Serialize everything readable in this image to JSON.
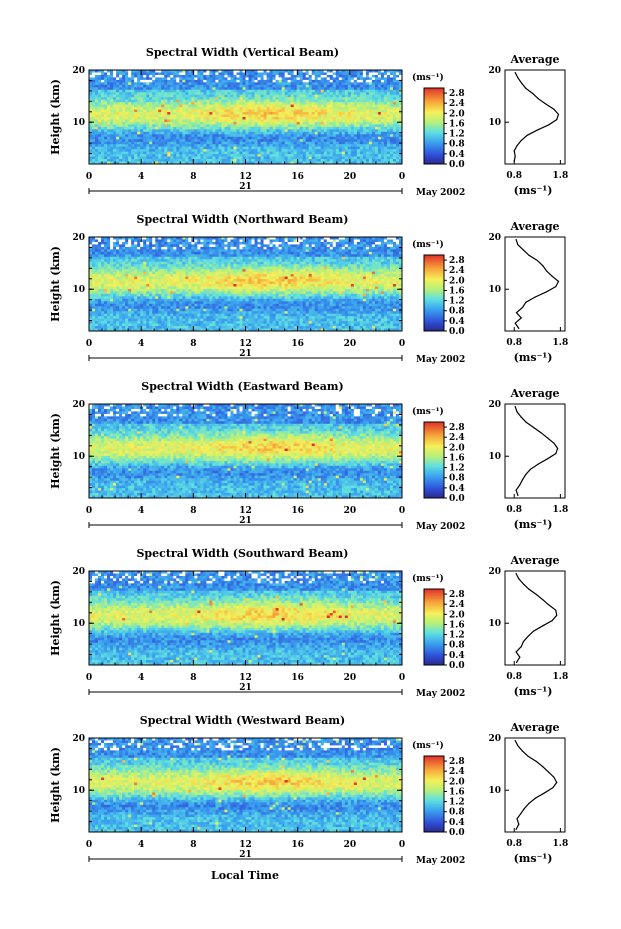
{
  "figure": {
    "xlabel": "Local Time",
    "date_tag": "May 2002",
    "day_label": "21",
    "unit_label": "(ms⁻¹)",
    "profile_title": "Average",
    "profile_xlabel": "(ms⁻¹)",
    "ylabel": "Height (km)"
  },
  "chart_data": [
    {
      "type": "heatmap",
      "title": "Spectral Width (Vertical Beam)",
      "ylabel": "Height (km)",
      "xlabel": "",
      "x_ticks": [
        "0",
        "4",
        "8",
        "12",
        "16",
        "20",
        "0"
      ],
      "x_range": [
        0,
        24
      ],
      "y_ticks": [
        "20",
        "10"
      ],
      "y_range": [
        2,
        20
      ],
      "colorbar": {
        "label": "(ms⁻¹)",
        "ticks": [
          "2.8",
          "2.4",
          "2.0",
          "1.6",
          "1.2",
          "0.8",
          "0.4",
          "0.0"
        ],
        "range": [
          0.0,
          3.0
        ]
      },
      "profile": {
        "title": "Average",
        "xlabel": "(ms⁻¹)",
        "x_ticks": [
          "0.8",
          "1.8"
        ],
        "y_ticks": [
          "20",
          "10"
        ],
        "points": [
          [
            0.8,
            2.5
          ],
          [
            0.82,
            3.5
          ],
          [
            0.8,
            4.5
          ],
          [
            0.86,
            5.5
          ],
          [
            0.95,
            6.5
          ],
          [
            1.08,
            7.5
          ],
          [
            1.3,
            8.5
          ],
          [
            1.55,
            9.5
          ],
          [
            1.72,
            10.5
          ],
          [
            1.76,
            11.5
          ],
          [
            1.66,
            12.5
          ],
          [
            1.48,
            13.5
          ],
          [
            1.32,
            14.5
          ],
          [
            1.2,
            15.5
          ],
          [
            1.05,
            16.5
          ],
          [
            0.96,
            17.5
          ],
          [
            0.88,
            18.5
          ],
          [
            0.82,
            19.5
          ]
        ]
      }
    },
    {
      "type": "heatmap",
      "title": "Spectral Width (Northward Beam)",
      "ylabel": "Height (km)",
      "xlabel": "",
      "x_ticks": [
        "0",
        "4",
        "8",
        "12",
        "16",
        "20",
        "0"
      ],
      "x_range": [
        0,
        24
      ],
      "y_ticks": [
        "20",
        "10"
      ],
      "y_range": [
        2,
        20
      ],
      "colorbar": {
        "label": "(ms⁻¹)",
        "ticks": [
          "2.8",
          "2.4",
          "2.0",
          "1.6",
          "1.2",
          "0.8",
          "0.4",
          "0.0"
        ],
        "range": [
          0.0,
          3.0
        ]
      },
      "profile": {
        "title": "Average",
        "xlabel": "(ms⁻¹)",
        "x_ticks": [
          "0.8",
          "1.8"
        ],
        "y_ticks": [
          "20",
          "10"
        ],
        "points": [
          [
            0.9,
            2.5
          ],
          [
            0.82,
            3.5
          ],
          [
            0.95,
            4.5
          ],
          [
            0.85,
            5.5
          ],
          [
            0.98,
            6.5
          ],
          [
            1.05,
            7.5
          ],
          [
            1.25,
            8.5
          ],
          [
            1.5,
            9.5
          ],
          [
            1.7,
            10.5
          ],
          [
            1.76,
            11.5
          ],
          [
            1.62,
            12.5
          ],
          [
            1.5,
            13.5
          ],
          [
            1.42,
            14.5
          ],
          [
            1.3,
            15.5
          ],
          [
            1.12,
            16.5
          ],
          [
            1.0,
            17.5
          ],
          [
            0.88,
            18.5
          ],
          [
            0.84,
            19.5
          ]
        ]
      }
    },
    {
      "type": "heatmap",
      "title": "Spectral Width (Eastward Beam)",
      "ylabel": "Height (km)",
      "xlabel": "",
      "x_ticks": [
        "0",
        "4",
        "8",
        "12",
        "16",
        "20",
        "0"
      ],
      "x_range": [
        0,
        24
      ],
      "y_ticks": [
        "20",
        "10"
      ],
      "y_range": [
        2,
        20
      ],
      "colorbar": {
        "label": "(ms⁻¹)",
        "ticks": [
          "2.8",
          "2.4",
          "2.0",
          "1.6",
          "1.2",
          "0.8",
          "0.4",
          "0.0"
        ],
        "range": [
          0.0,
          3.0
        ]
      },
      "profile": {
        "title": "Average",
        "xlabel": "(ms⁻¹)",
        "x_ticks": [
          "0.8",
          "1.8"
        ],
        "y_ticks": [
          "20",
          "10"
        ],
        "points": [
          [
            0.88,
            2.5
          ],
          [
            0.84,
            3.5
          ],
          [
            0.92,
            4.5
          ],
          [
            0.98,
            5.5
          ],
          [
            1.05,
            6.5
          ],
          [
            1.15,
            7.5
          ],
          [
            1.32,
            8.5
          ],
          [
            1.52,
            9.5
          ],
          [
            1.7,
            10.5
          ],
          [
            1.74,
            11.5
          ],
          [
            1.66,
            12.5
          ],
          [
            1.52,
            13.5
          ],
          [
            1.38,
            14.5
          ],
          [
            1.22,
            15.5
          ],
          [
            1.06,
            16.5
          ],
          [
            0.95,
            17.5
          ],
          [
            0.86,
            18.5
          ],
          [
            0.82,
            19.5
          ]
        ]
      }
    },
    {
      "type": "heatmap",
      "title": "Spectral Width (Southward Beam)",
      "ylabel": "Height (km)",
      "xlabel": "",
      "x_ticks": [
        "0",
        "4",
        "8",
        "12",
        "16",
        "20",
        "0"
      ],
      "x_range": [
        0,
        24
      ],
      "y_ticks": [
        "20",
        "10"
      ],
      "y_range": [
        2,
        20
      ],
      "colorbar": {
        "label": "(ms⁻¹)",
        "ticks": [
          "2.8",
          "2.4",
          "2.0",
          "1.6",
          "1.2",
          "0.8",
          "0.4",
          "0.0"
        ],
        "range": [
          0.0,
          3.0
        ]
      },
      "profile": {
        "title": "Average",
        "xlabel": "(ms⁻¹)",
        "x_ticks": [
          "0.8",
          "1.8"
        ],
        "y_ticks": [
          "20",
          "10"
        ],
        "points": [
          [
            0.85,
            2.5
          ],
          [
            0.92,
            3.5
          ],
          [
            0.84,
            4.5
          ],
          [
            0.95,
            5.5
          ],
          [
            1.0,
            6.5
          ],
          [
            1.1,
            7.5
          ],
          [
            1.22,
            8.5
          ],
          [
            1.42,
            9.5
          ],
          [
            1.62,
            10.5
          ],
          [
            1.72,
            11.5
          ],
          [
            1.7,
            12.5
          ],
          [
            1.55,
            13.5
          ],
          [
            1.42,
            14.5
          ],
          [
            1.28,
            15.5
          ],
          [
            1.12,
            16.5
          ],
          [
            1.0,
            17.5
          ],
          [
            0.9,
            18.5
          ],
          [
            0.84,
            19.5
          ]
        ]
      }
    },
    {
      "type": "heatmap",
      "title": "Spectral Width (Westward Beam)",
      "ylabel": "Height (km)",
      "xlabel": "Local Time",
      "x_ticks": [
        "0",
        "4",
        "8",
        "12",
        "16",
        "20",
        "0"
      ],
      "x_range": [
        0,
        24
      ],
      "y_ticks": [
        "20",
        "10"
      ],
      "y_range": [
        2,
        20
      ],
      "colorbar": {
        "label": "(ms⁻¹)",
        "ticks": [
          "2.8",
          "2.4",
          "2.0",
          "1.6",
          "1.2",
          "0.8",
          "0.4",
          "0.0"
        ],
        "range": [
          0.0,
          3.0
        ]
      },
      "profile": {
        "title": "Average",
        "xlabel": "(ms⁻¹)",
        "x_ticks": [
          "0.8",
          "1.8"
        ],
        "y_ticks": [
          "20",
          "10"
        ],
        "points": [
          [
            0.84,
            2.5
          ],
          [
            0.9,
            3.5
          ],
          [
            0.86,
            4.5
          ],
          [
            0.94,
            5.5
          ],
          [
            1.02,
            6.5
          ],
          [
            1.12,
            7.5
          ],
          [
            1.26,
            8.5
          ],
          [
            1.46,
            9.5
          ],
          [
            1.64,
            10.5
          ],
          [
            1.72,
            11.5
          ],
          [
            1.66,
            12.5
          ],
          [
            1.54,
            13.5
          ],
          [
            1.42,
            14.5
          ],
          [
            1.28,
            15.5
          ],
          [
            1.1,
            16.5
          ],
          [
            0.98,
            17.5
          ],
          [
            0.88,
            18.5
          ],
          [
            0.82,
            19.5
          ]
        ]
      }
    }
  ]
}
